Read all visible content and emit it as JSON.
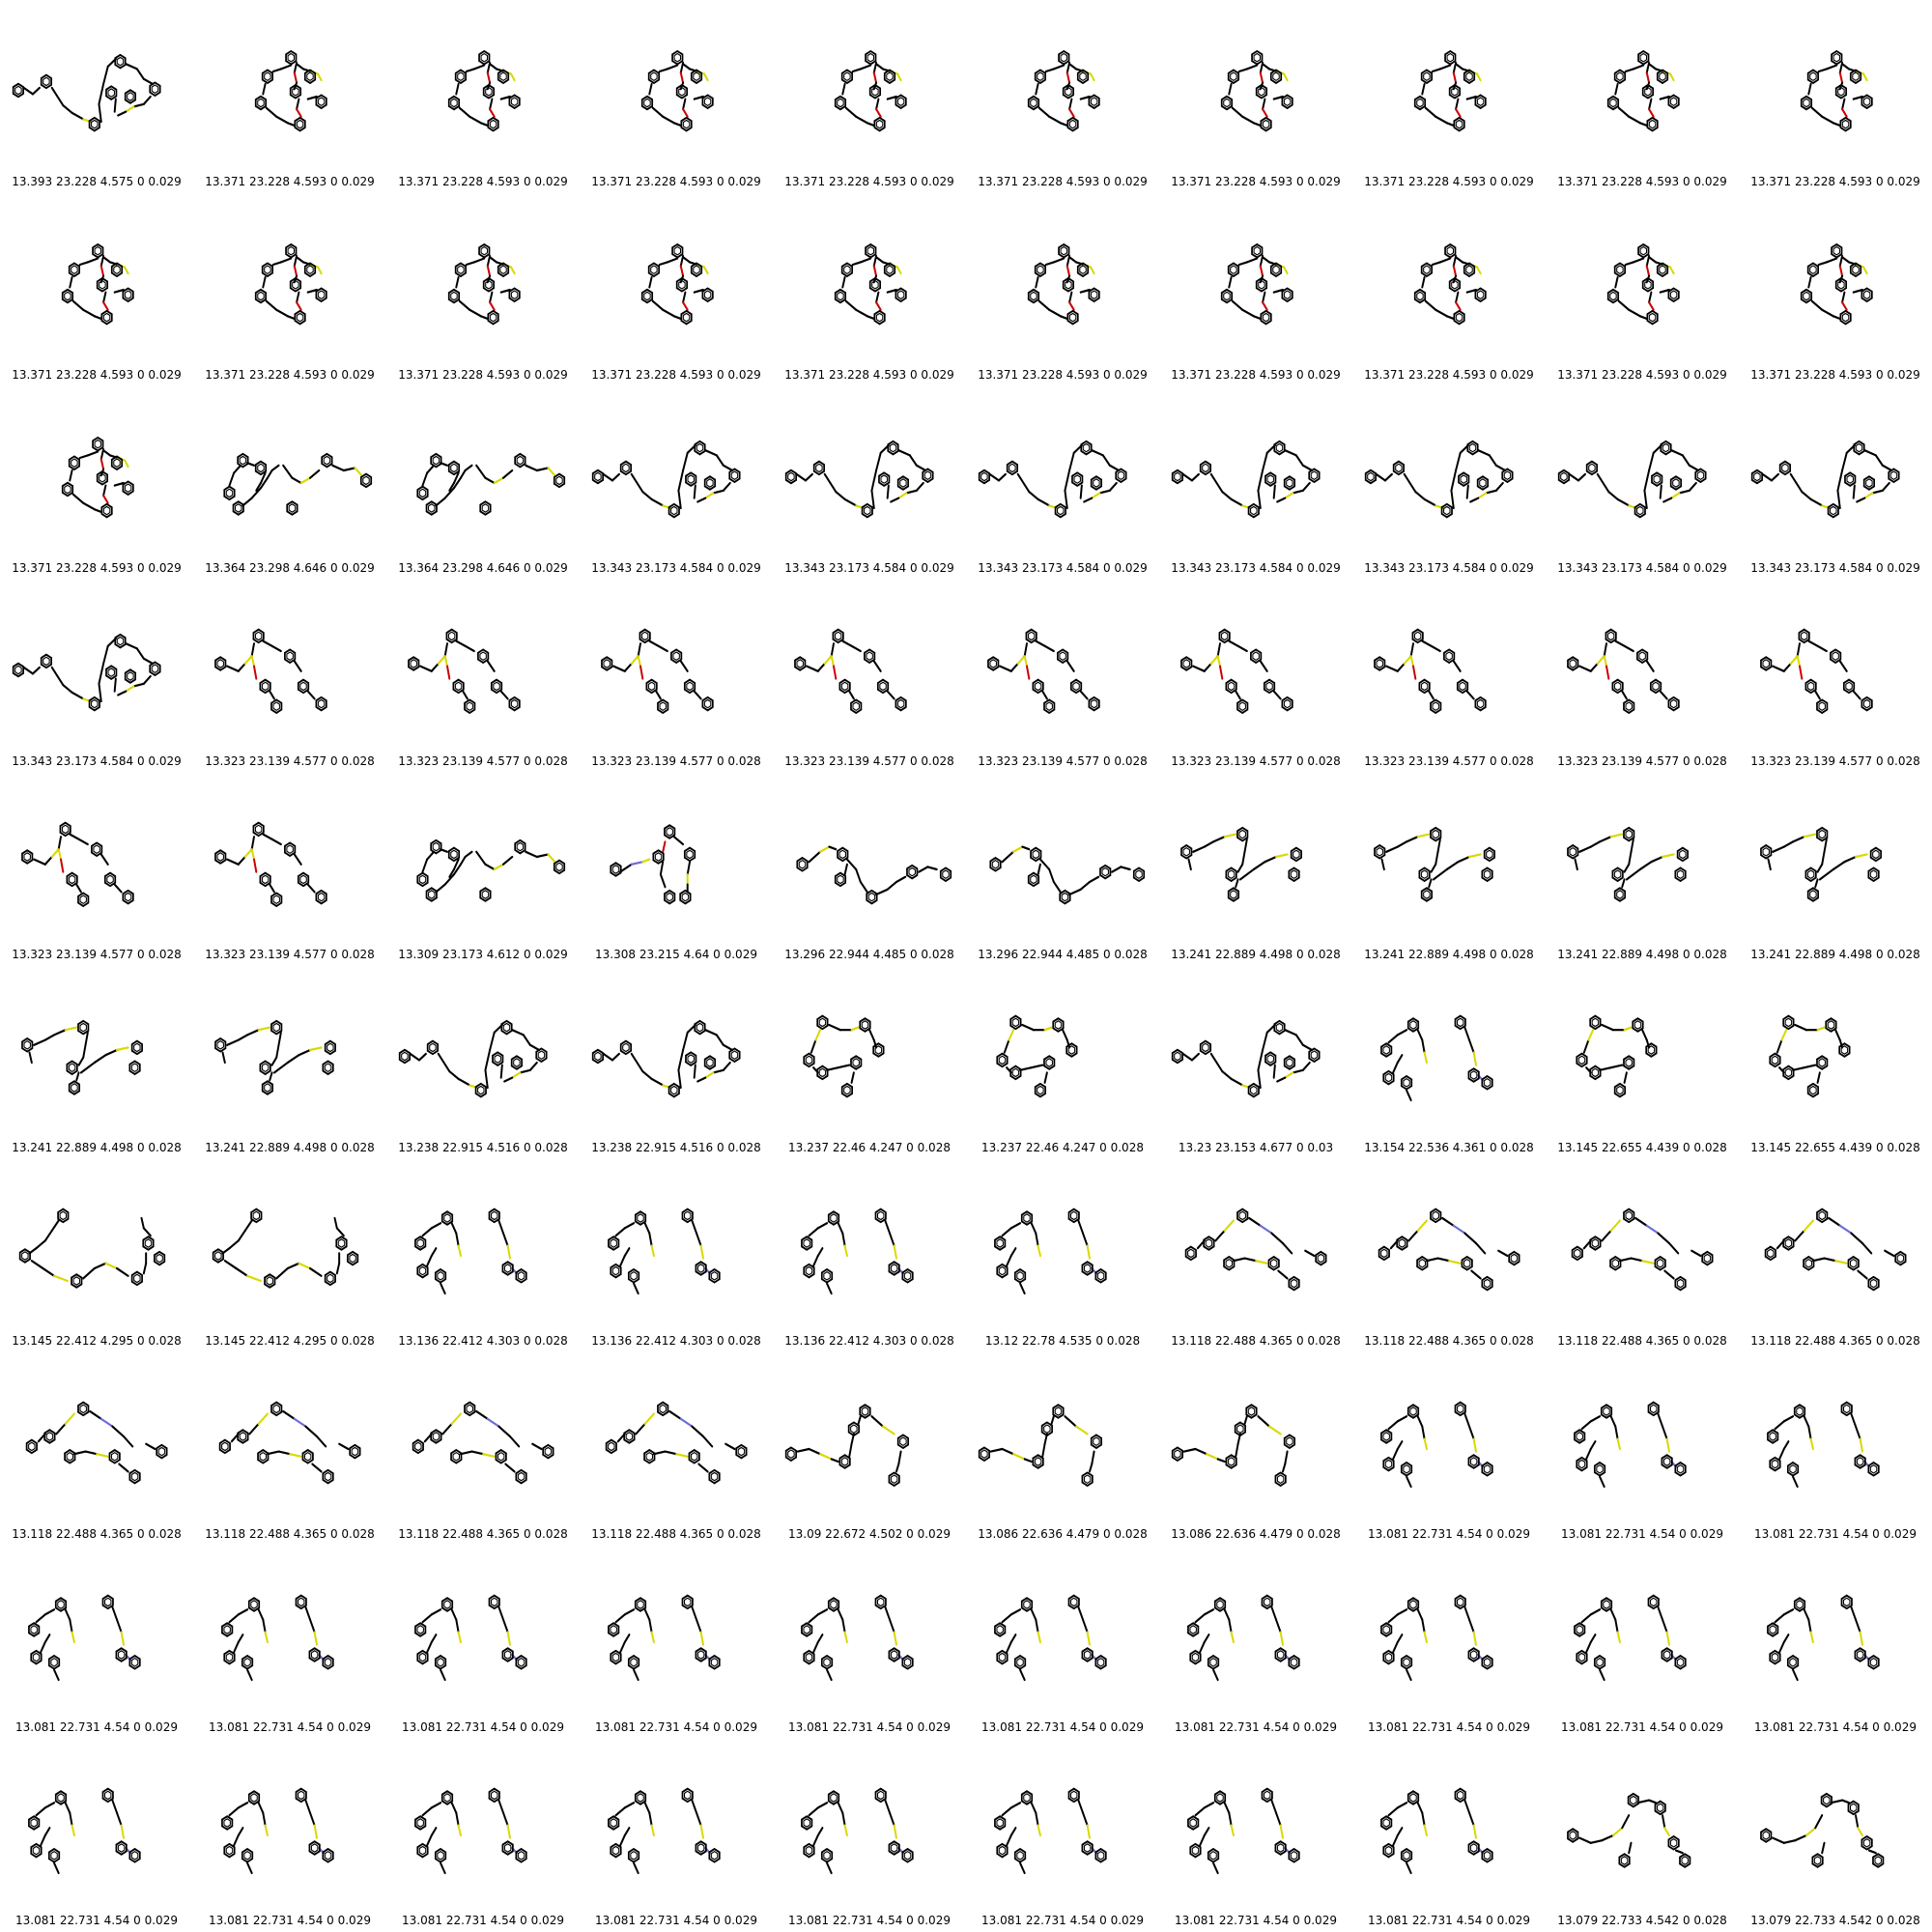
{
  "colors": {
    "background": "#ffffff",
    "bond": "#000000",
    "sulfur": "#d9d900",
    "oxygen": "#cc0000",
    "nitrogen": "#6b6bd6"
  },
  "molecules": [
    {
      "label": "13.393 23.228 4.575 0 0.029",
      "shape": 0
    },
    {
      "label": "13.371 23.228 4.593 0 0.029",
      "shape": 1
    },
    {
      "label": "13.371 23.228 4.593 0 0.029",
      "shape": 1
    },
    {
      "label": "13.371 23.228 4.593 0 0.029",
      "shape": 1
    },
    {
      "label": "13.371 23.228 4.593 0 0.029",
      "shape": 1
    },
    {
      "label": "13.371 23.228 4.593 0 0.029",
      "shape": 1
    },
    {
      "label": "13.371 23.228 4.593 0 0.029",
      "shape": 1
    },
    {
      "label": "13.371 23.228 4.593 0 0.029",
      "shape": 1
    },
    {
      "label": "13.371 23.228 4.593 0 0.029",
      "shape": 1
    },
    {
      "label": "13.371 23.228 4.593 0 0.029",
      "shape": 1
    },
    {
      "label": "13.371 23.228 4.593 0 0.029",
      "shape": 1
    },
    {
      "label": "13.371 23.228 4.593 0 0.029",
      "shape": 1
    },
    {
      "label": "13.371 23.228 4.593 0 0.029",
      "shape": 1
    },
    {
      "label": "13.371 23.228 4.593 0 0.029",
      "shape": 1
    },
    {
      "label": "13.371 23.228 4.593 0 0.029",
      "shape": 1
    },
    {
      "label": "13.371 23.228 4.593 0 0.029",
      "shape": 1
    },
    {
      "label": "13.371 23.228 4.593 0 0.029",
      "shape": 1
    },
    {
      "label": "13.371 23.228 4.593 0 0.029",
      "shape": 1
    },
    {
      "label": "13.371 23.228 4.593 0 0.029",
      "shape": 1
    },
    {
      "label": "13.371 23.228 4.593 0 0.029",
      "shape": 1
    },
    {
      "label": "13.371 23.228 4.593 0 0.029",
      "shape": 1
    },
    {
      "label": "13.364 23.298 4.646 0 0.029",
      "shape": 2
    },
    {
      "label": "13.364 23.298 4.646 0 0.029",
      "shape": 2
    },
    {
      "label": "13.343 23.173 4.584 0 0.029",
      "shape": 0
    },
    {
      "label": "13.343 23.173 4.584 0 0.029",
      "shape": 0
    },
    {
      "label": "13.343 23.173 4.584 0 0.029",
      "shape": 0
    },
    {
      "label": "13.343 23.173 4.584 0 0.029",
      "shape": 0
    },
    {
      "label": "13.343 23.173 4.584 0 0.029",
      "shape": 0
    },
    {
      "label": "13.343 23.173 4.584 0 0.029",
      "shape": 0
    },
    {
      "label": "13.343 23.173 4.584 0 0.029",
      "shape": 0
    },
    {
      "label": "13.343 23.173 4.584 0 0.029",
      "shape": 0
    },
    {
      "label": "13.323 23.139 4.577 0 0.028",
      "shape": 3
    },
    {
      "label": "13.323 23.139 4.577 0 0.028",
      "shape": 3
    },
    {
      "label": "13.323 23.139 4.577 0 0.028",
      "shape": 3
    },
    {
      "label": "13.323 23.139 4.577 0 0.028",
      "shape": 3
    },
    {
      "label": "13.323 23.139 4.577 0 0.028",
      "shape": 3
    },
    {
      "label": "13.323 23.139 4.577 0 0.028",
      "shape": 3
    },
    {
      "label": "13.323 23.139 4.577 0 0.028",
      "shape": 3
    },
    {
      "label": "13.323 23.139 4.577 0 0.028",
      "shape": 3
    },
    {
      "label": "13.323 23.139 4.577 0 0.028",
      "shape": 3
    },
    {
      "label": "13.323 23.139 4.577 0 0.028",
      "shape": 3
    },
    {
      "label": "13.323 23.139 4.577 0 0.028",
      "shape": 3
    },
    {
      "label": "13.309 23.173 4.612 0 0.029",
      "shape": 2
    },
    {
      "label": "13.308 23.215 4.64 0 0.029",
      "shape": 4
    },
    {
      "label": "13.296 22.944 4.485 0 0.028",
      "shape": 5
    },
    {
      "label": "13.296 22.944 4.485 0 0.028",
      "shape": 5
    },
    {
      "label": "13.241 22.889 4.498 0 0.028",
      "shape": 6
    },
    {
      "label": "13.241 22.889 4.498 0 0.028",
      "shape": 6
    },
    {
      "label": "13.241 22.889 4.498 0 0.028",
      "shape": 6
    },
    {
      "label": "13.241 22.889 4.498 0 0.028",
      "shape": 6
    },
    {
      "label": "13.241 22.889 4.498 0 0.028",
      "shape": 6
    },
    {
      "label": "13.241 22.889 4.498 0 0.028",
      "shape": 6
    },
    {
      "label": "13.238 22.915 4.516 0 0.028",
      "shape": 0
    },
    {
      "label": "13.238 22.915 4.516 0 0.028",
      "shape": 0
    },
    {
      "label": "13.237 22.46 4.247 0 0.028",
      "shape": 7
    },
    {
      "label": "13.237 22.46 4.247 0 0.028",
      "shape": 7
    },
    {
      "label": "13.23 23.153 4.677 0 0.03",
      "shape": 0
    },
    {
      "label": "13.154 22.536 4.361 0 0.028",
      "shape": 8
    },
    {
      "label": "13.145 22.655 4.439 0 0.028",
      "shape": 7
    },
    {
      "label": "13.145 22.655 4.439 0 0.028",
      "shape": 7
    },
    {
      "label": "13.145 22.412 4.295 0 0.028",
      "shape": 9
    },
    {
      "label": "13.145 22.412 4.295 0 0.028",
      "shape": 9
    },
    {
      "label": "13.136 22.412 4.303 0 0.028",
      "shape": 8
    },
    {
      "label": "13.136 22.412 4.303 0 0.028",
      "shape": 8
    },
    {
      "label": "13.136 22.412 4.303 0 0.028",
      "shape": 8
    },
    {
      "label": "13.12 22.78 4.535 0 0.028",
      "shape": 8
    },
    {
      "label": "13.118 22.488 4.365 0 0.028",
      "shape": 10
    },
    {
      "label": "13.118 22.488 4.365 0 0.028",
      "shape": 10
    },
    {
      "label": "13.118 22.488 4.365 0 0.028",
      "shape": 10
    },
    {
      "label": "13.118 22.488 4.365 0 0.028",
      "shape": 10
    },
    {
      "label": "13.118 22.488 4.365 0 0.028",
      "shape": 10
    },
    {
      "label": "13.118 22.488 4.365 0 0.028",
      "shape": 10
    },
    {
      "label": "13.118 22.488 4.365 0 0.028",
      "shape": 10
    },
    {
      "label": "13.118 22.488 4.365 0 0.028",
      "shape": 10
    },
    {
      "label": "13.09 22.672 4.502 0 0.029",
      "shape": 11
    },
    {
      "label": "13.086 22.636 4.479 0 0.028",
      "shape": 11
    },
    {
      "label": "13.086 22.636 4.479 0 0.028",
      "shape": 11
    },
    {
      "label": "13.081 22.731 4.54 0 0.029",
      "shape": 8
    },
    {
      "label": "13.081 22.731 4.54 0 0.029",
      "shape": 8
    },
    {
      "label": "13.081 22.731 4.54 0 0.029",
      "shape": 8
    },
    {
      "label": "13.081 22.731 4.54 0 0.029",
      "shape": 8
    },
    {
      "label": "13.081 22.731 4.54 0 0.029",
      "shape": 8
    },
    {
      "label": "13.081 22.731 4.54 0 0.029",
      "shape": 8
    },
    {
      "label": "13.081 22.731 4.54 0 0.029",
      "shape": 8
    },
    {
      "label": "13.081 22.731 4.54 0 0.029",
      "shape": 8
    },
    {
      "label": "13.081 22.731 4.54 0 0.029",
      "shape": 8
    },
    {
      "label": "13.081 22.731 4.54 0 0.029",
      "shape": 8
    },
    {
      "label": "13.081 22.731 4.54 0 0.029",
      "shape": 8
    },
    {
      "label": "13.081 22.731 4.54 0 0.029",
      "shape": 8
    },
    {
      "label": "13.081 22.731 4.54 0 0.029",
      "shape": 8
    },
    {
      "label": "13.081 22.731 4.54 0 0.029",
      "shape": 8
    },
    {
      "label": "13.081 22.731 4.54 0 0.029",
      "shape": 8
    },
    {
      "label": "13.081 22.731 4.54 0 0.029",
      "shape": 8
    },
    {
      "label": "13.081 22.731 4.54 0 0.029",
      "shape": 8
    },
    {
      "label": "13.081 22.731 4.54 0 0.029",
      "shape": 8
    },
    {
      "label": "13.081 22.731 4.54 0 0.029",
      "shape": 8
    },
    {
      "label": "13.081 22.731 4.54 0 0.029",
      "shape": 8
    },
    {
      "label": "13.081 22.731 4.54 0 0.029",
      "shape": 8
    },
    {
      "label": "13.079 22.733 4.542 0 0.028",
      "shape": 12
    },
    {
      "label": "13.079 22.733 4.542 0 0.028",
      "shape": 12
    }
  ]
}
